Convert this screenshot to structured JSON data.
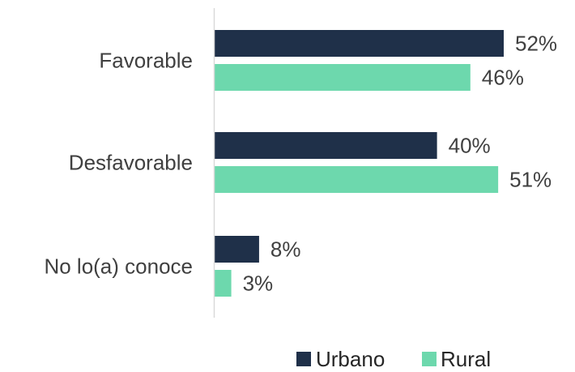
{
  "chart_data": {
    "type": "bar",
    "orientation": "horizontal",
    "categories": [
      "Favorable",
      "Desfavorable",
      "No lo(a) conoce"
    ],
    "series": [
      {
        "name": "Urbano",
        "values": [
          52,
          40,
          8
        ],
        "labels": [
          "52%",
          "40%",
          "8%"
        ],
        "color": "#1f3049"
      },
      {
        "name": "Rural",
        "values": [
          46,
          51,
          3
        ],
        "labels": [
          "46%",
          "51%",
          "3%"
        ],
        "color": "#6dd8ad"
      }
    ],
    "xlim": [
      0,
      60
    ],
    "grid": false,
    "axis_line_color": "#d9d9d9",
    "legend_placement": "bottom"
  }
}
